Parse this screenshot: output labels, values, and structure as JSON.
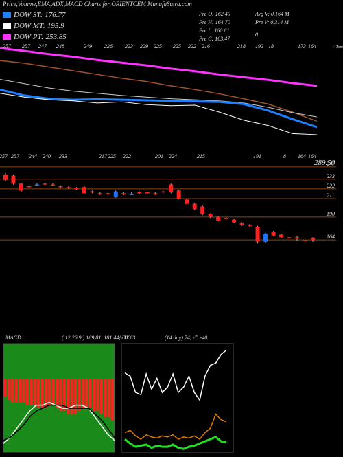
{
  "header": {
    "title": "Price,Volume,EMA,ADX,MACD Charts for ORIENTCEM MunafaSutra.com",
    "legend": [
      {
        "label": "DOW ST: 176.77",
        "color": "#1e7fff"
      },
      {
        "label": "DOW MT: 195.9",
        "color": "#ffffff"
      },
      {
        "label": "DOW PT: 253.85",
        "color": "#ff33ff"
      }
    ],
    "stats": [
      [
        "Pre  O: 162.40",
        "Avg V: 0.164  M"
      ],
      [
        "Pre  H: 164.70",
        "Pre  V: 0.314  M"
      ],
      [
        "Pre  L: 160.61",
        "0"
      ],
      [
        "Pre  C: 163.47"
      ]
    ]
  },
  "chart_data": [
    {
      "type": "line",
      "ylim": [
        113,
        337
      ],
      "series": [
        {
          "name": "DOW PT",
          "color": "#ff33ff",
          "width": 3,
          "values": [
            324,
            319,
            313,
            308,
            302,
            297,
            292,
            286,
            281,
            275,
            270,
            265,
            259,
            254
          ]
        },
        {
          "name": "EMA",
          "color": "#a0522d",
          "width": 1.5,
          "values": [
            301,
            296,
            289,
            282,
            275,
            268,
            262,
            254,
            247,
            239,
            230,
            220,
            205,
            188
          ]
        },
        {
          "name": "DOW MT",
          "color": "#cccccc",
          "width": 1,
          "values": [
            266,
            258,
            250,
            244,
            240,
            236,
            233,
            230,
            228,
            226,
            222,
            214,
            204,
            196
          ]
        },
        {
          "name": "DOW ST",
          "color": "#1e7fff",
          "width": 3,
          "values": [
            247,
            236,
            230,
            228,
            229,
            228,
            227,
            226,
            225,
            224,
            220,
            208,
            192,
            177
          ]
        },
        {
          "name": "Price",
          "color": "#ffffff",
          "width": 1,
          "values": [
            240,
            233,
            228,
            226,
            222,
            224,
            219,
            217,
            218,
            205,
            190,
            180,
            165,
            163
          ]
        }
      ],
      "tops": [
        257,
        257,
        247,
        248,
        249,
        226,
        223,
        229,
        225,
        225,
        222,
        216,
        218,
        192,
        18,
        173,
        164
      ],
      "tops_label": "< Tops",
      "lows": [
        257,
        257,
        244,
        240,
        233,
        217,
        225,
        222,
        201,
        224,
        215,
        191,
        8,
        164,
        164
      ],
      "last_value": "289.50"
    },
    {
      "type": "candlestick",
      "ylim": [
        136,
        250
      ],
      "yticks": [
        247,
        233,
        222,
        211,
        190,
        164
      ],
      "up_color": "#1e6fff",
      "down_color": "#ff2020",
      "open": [
        238,
        237,
        228,
        225,
        226,
        228,
        227,
        225,
        224,
        223,
        224,
        219,
        217,
        217,
        213,
        217,
        216,
        218,
        218,
        217,
        219,
        227,
        220,
        210,
        205,
        202,
        193,
        190,
        189,
        187,
        183,
        181,
        179,
        162,
        173,
        170,
        167,
        167,
        164,
        166
      ],
      "high": [
        240,
        238,
        229,
        226,
        228,
        229,
        228,
        226,
        225,
        224,
        225,
        220,
        218,
        218,
        220,
        218,
        218,
        219,
        219,
        218,
        220,
        228,
        221,
        211,
        206,
        203,
        194,
        191,
        190,
        188,
        184,
        182,
        180,
        172,
        174,
        171,
        168,
        168,
        165,
        167
      ],
      "low": [
        231,
        227,
        219,
        223,
        225,
        226,
        225,
        223,
        222,
        221,
        216,
        217,
        215,
        215,
        212,
        215,
        215,
        216,
        216,
        215,
        217,
        217,
        210,
        204,
        198,
        192,
        189,
        185,
        187,
        183,
        180,
        179,
        160,
        161,
        168,
        166,
        165,
        163,
        159,
        162
      ],
      "close": [
        232,
        228,
        220,
        224,
        227,
        227,
        226,
        224,
        223,
        222,
        217,
        218,
        216,
        216,
        219,
        216,
        216,
        217,
        217,
        216,
        218,
        218,
        211,
        205,
        199,
        193,
        190,
        186,
        188,
        184,
        181,
        180,
        162,
        171,
        169,
        167,
        166,
        166,
        163,
        164
      ]
    },
    {
      "type": "macd",
      "label": "MACD:",
      "params": "( 12,26,9 ) 169.81,  181.44,  -11.63",
      "ylim": [
        -25,
        12
      ],
      "hist_color": "#ff2020",
      "histogram": [
        -6,
        -7,
        -8,
        -8,
        -8,
        -8,
        -9,
        -9,
        -9,
        -10,
        -10,
        -10,
        -9,
        -9,
        -10,
        -11,
        -11,
        -12,
        -12,
        -12,
        -11,
        -10,
        -10,
        -10,
        -11,
        -11,
        -12,
        -13,
        -13,
        -14
      ],
      "series": [
        {
          "name": "MACD",
          "color": "#ffffff",
          "values": [
            -22,
            -20,
            -17,
            -14,
            -11,
            -9,
            -9,
            -8,
            -9,
            -10,
            -10,
            -9,
            -9,
            -10,
            -13,
            -16,
            -19,
            -21
          ]
        },
        {
          "name": "Signal",
          "color": "#000000",
          "values": [
            -21,
            -20,
            -18,
            -16,
            -13,
            -11,
            -10,
            -9,
            -9,
            -9,
            -10,
            -10,
            -10,
            -10,
            -12,
            -14,
            -17,
            -20
          ]
        }
      ]
    },
    {
      "type": "adx",
      "label": "ADX",
      "params": "(14 day) 74, -7, -40",
      "ylim": [
        0,
        100
      ],
      "series": [
        {
          "name": "ADX",
          "color": "#ffffff",
          "values": [
            73,
            70,
            55,
            53,
            72,
            58,
            68,
            55,
            60,
            72,
            55,
            60,
            70,
            55,
            48,
            70,
            80,
            82,
            90,
            94
          ]
        },
        {
          "name": "+DI",
          "color": "#e07800",
          "values": [
            18,
            20,
            15,
            12,
            16,
            14,
            13,
            15,
            14,
            16,
            12,
            14,
            13,
            15,
            12,
            18,
            22,
            35,
            30,
            28
          ]
        },
        {
          "name": "-DI",
          "color": "#22dd22",
          "values": [
            12,
            8,
            5,
            6,
            7,
            4,
            6,
            5,
            5,
            7,
            4,
            3,
            5,
            6,
            8,
            10,
            12,
            14,
            10,
            9
          ]
        }
      ]
    }
  ]
}
